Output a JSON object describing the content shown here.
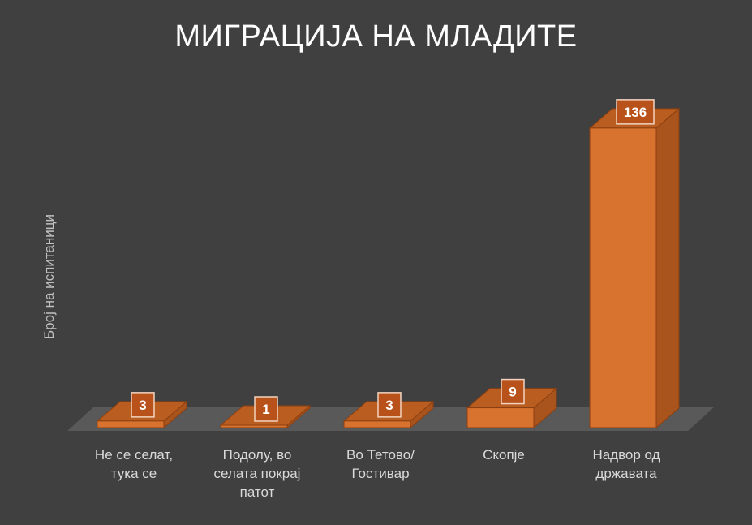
{
  "chart_data": {
    "type": "bar",
    "title": "МИГРАЦИЈА НА МЛАДИТЕ",
    "ylabel": "Број на испитаници",
    "xlabel": "",
    "categories": [
      "Не се селат, тука се",
      "Подолу, во селата покрај патот",
      "Во Тетово/ Гостивар",
      "Скопје",
      "Надвор од државата"
    ],
    "category_label_lines": [
      [
        "Не се селат,",
        "тука се"
      ],
      [
        "Подолу, во",
        "селата покрај",
        "патот"
      ],
      [
        "Во Тетово/",
        "Гостивар"
      ],
      [
        "Скопје"
      ],
      [
        "Надвор од",
        "државата"
      ]
    ],
    "values": [
      3,
      1,
      3,
      9,
      136
    ],
    "data_labels": [
      "3",
      "1",
      "3",
      "9",
      "136"
    ],
    "ylim": [
      0,
      140
    ],
    "grid": false,
    "legend": "none",
    "style": "3d-column"
  },
  "colors": {
    "background": "#404040",
    "floor": "#595959",
    "bar_front": "#d8722f",
    "bar_side": "#a9531d",
    "bar_top": "#b95d20",
    "bar_edge": "#8c3f10",
    "label_box_fill": "#b8521a",
    "label_box_border": "#f2d3c0",
    "label_text": "#ffffff"
  }
}
